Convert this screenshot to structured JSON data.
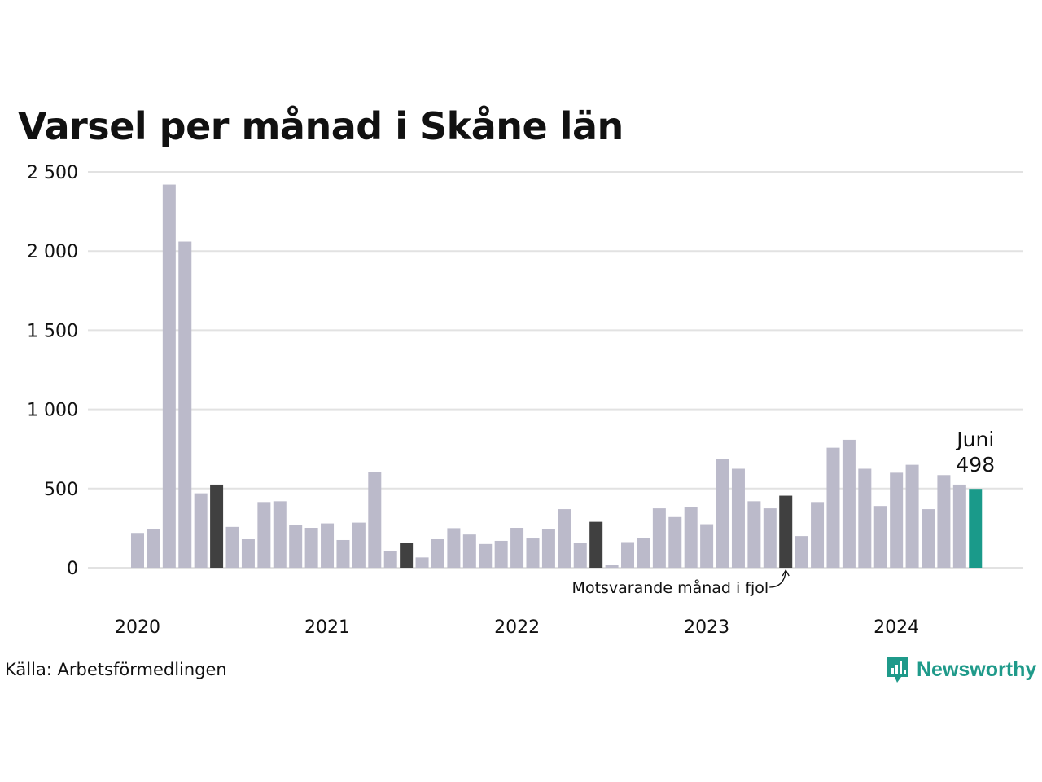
{
  "title": "Varsel per månad i Skåne län",
  "source": "Källa: Arbetsförmedlingen",
  "brand": {
    "name": "Newsworthy",
    "icon": "newsworthy-logo-icon",
    "color": "#1f9a8a"
  },
  "colors": {
    "default": "#bbbaca",
    "highlight": "#404040",
    "latest": "#1a9a8a",
    "grid": "#e2e2e2"
  },
  "chart_data": {
    "type": "bar",
    "title": "Varsel per månad i Skåne län",
    "xlabel": "",
    "ylabel": "",
    "ylim": [
      0,
      2500
    ],
    "yticks": [
      0,
      500,
      1000,
      1500,
      2000,
      2500
    ],
    "ytick_labels": [
      "0",
      "500",
      "1 000",
      "1 500",
      "2 000",
      "2 500"
    ],
    "xtick_labels": [
      {
        "label": "2020",
        "category": "2020-01"
      },
      {
        "label": "2021",
        "category": "2021-01"
      },
      {
        "label": "2022",
        "category": "2022-01"
      },
      {
        "label": "2023",
        "category": "2023-01"
      },
      {
        "label": "2024",
        "category": "2024-01"
      }
    ],
    "grid": true,
    "categories": [
      "2020-01",
      "2020-02",
      "2020-03",
      "2020-04",
      "2020-05",
      "2020-06",
      "2020-07",
      "2020-08",
      "2020-09",
      "2020-10",
      "2020-11",
      "2020-12",
      "2021-01",
      "2021-02",
      "2021-03",
      "2021-04",
      "2021-05",
      "2021-06",
      "2021-07",
      "2021-08",
      "2021-09",
      "2021-10",
      "2021-11",
      "2021-12",
      "2022-01",
      "2022-02",
      "2022-03",
      "2022-04",
      "2022-05",
      "2022-06",
      "2022-07",
      "2022-08",
      "2022-09",
      "2022-10",
      "2022-11",
      "2022-12",
      "2023-01",
      "2023-02",
      "2023-03",
      "2023-04",
      "2023-05",
      "2023-06",
      "2023-07",
      "2023-08",
      "2023-09",
      "2023-10",
      "2023-11",
      "2023-12",
      "2024-01",
      "2024-02",
      "2024-03",
      "2024-04",
      "2024-05",
      "2024-06"
    ],
    "values": [
      220,
      245,
      2420,
      2060,
      470,
      525,
      258,
      180,
      415,
      420,
      268,
      252,
      280,
      175,
      285,
      605,
      108,
      155,
      65,
      180,
      250,
      210,
      150,
      170,
      252,
      185,
      245,
      370,
      155,
      290,
      18,
      162,
      190,
      375,
      320,
      382,
      275,
      685,
      625,
      420,
      375,
      455,
      200,
      415,
      758,
      808,
      625,
      390,
      600,
      650,
      370,
      585,
      525,
      498
    ],
    "highlight": [
      "2020-06",
      "2021-06",
      "2022-06",
      "2023-06"
    ],
    "latest": "2024-06",
    "latest_label": {
      "month": "Juni",
      "value": "498"
    },
    "annotation": {
      "text": "Motsvarande månad i fjol",
      "category": "2023-06"
    }
  }
}
